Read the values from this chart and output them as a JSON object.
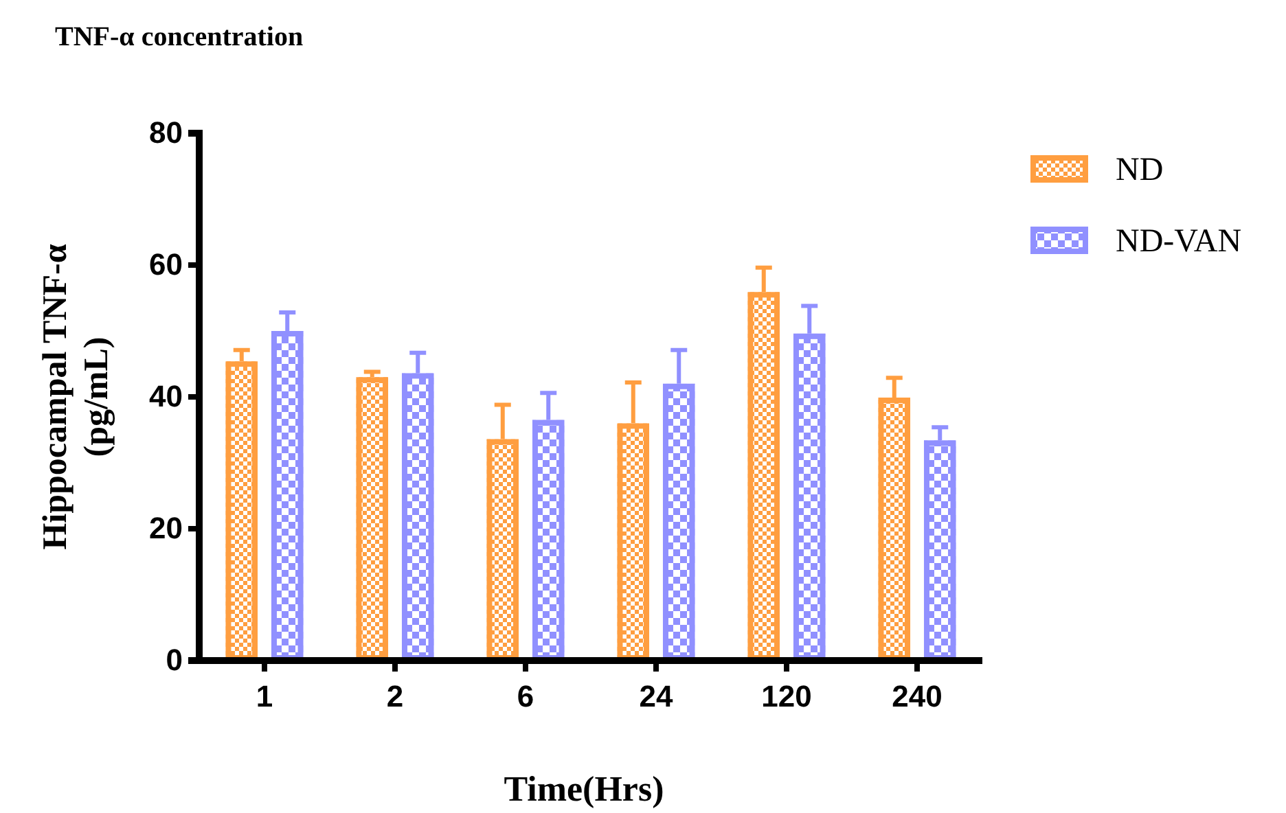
{
  "chart_data": {
    "type": "bar",
    "title": "TNF-α concentration",
    "xlabel": "Time(Hrs)",
    "ylabel": "Hippocampal TNF-α\n(pg/mL)",
    "categories": [
      "1",
      "2",
      "6",
      "24",
      "120",
      "240"
    ],
    "series": [
      {
        "name": "ND",
        "color": "#ff9e40",
        "values": [
          45.4,
          43,
          33.6,
          36,
          55.9,
          39.9
        ],
        "errors": [
          [
            45.4,
            47.1
          ],
          [
            43,
            43.8
          ],
          [
            33.6,
            38.8
          ],
          [
            36,
            42.2
          ],
          [
            55.9,
            59.6
          ],
          [
            39.9,
            42.9
          ]
        ]
      },
      {
        "name": "ND-VAN",
        "color": "#9090ff",
        "values": [
          50,
          43.6,
          36.5,
          42,
          49.6,
          33.4
        ],
        "errors": [
          [
            50,
            52.8
          ],
          [
            43.6,
            46.7
          ],
          [
            36.5,
            40.6
          ],
          [
            42,
            47.1
          ],
          [
            49.6,
            53.8
          ],
          [
            33.4,
            35.4
          ]
        ]
      }
    ],
    "ylim": [
      0,
      80
    ],
    "yticks": [
      0,
      20,
      40,
      60,
      80
    ],
    "grid": false,
    "legend": "right"
  }
}
